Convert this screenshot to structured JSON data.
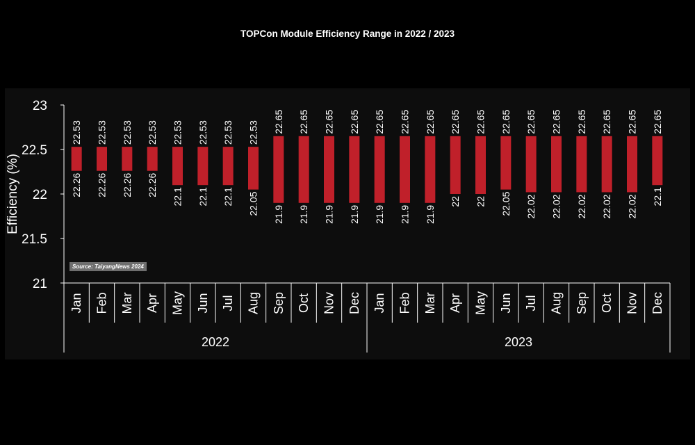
{
  "chart_data": {
    "type": "bar",
    "subtype": "floating-range",
    "title": "TOPCon Module Efficiency Range in 2022 / 2023",
    "ylabel": "Efficiency (%)",
    "xlabel": "",
    "ylim": [
      21,
      23
    ],
    "yticks": [
      "21",
      "21.5",
      "22",
      "22.5",
      "23"
    ],
    "grid": false,
    "legend": "none",
    "bar_color": "#c0202a",
    "groups": [
      {
        "label": "2022",
        "months": [
          "Jan",
          "Feb",
          "Mar",
          "Apr",
          "May",
          "Jun",
          "Jul",
          "Aug",
          "Sep",
          "Oct",
          "Nov",
          "Dec"
        ]
      },
      {
        "label": "2023",
        "months": [
          "Jan",
          "Feb",
          "Mar",
          "Apr",
          "May",
          "Jun",
          "Jul",
          "Aug",
          "Sep",
          "Oct",
          "Nov",
          "Dec"
        ]
      }
    ],
    "min_values": [
      22.26,
      22.26,
      22.26,
      22.26,
      22.1,
      22.1,
      22.1,
      22.05,
      21.9,
      21.9,
      21.9,
      21.9,
      21.9,
      21.9,
      21.9,
      22,
      22,
      22.05,
      22.02,
      22.02,
      22.02,
      22.02,
      22.02,
      22.1
    ],
    "max_values": [
      22.53,
      22.53,
      22.53,
      22.53,
      22.53,
      22.53,
      22.53,
      22.53,
      22.65,
      22.65,
      22.65,
      22.65,
      22.65,
      22.65,
      22.65,
      22.65,
      22.65,
      22.65,
      22.65,
      22.65,
      22.65,
      22.65,
      22.65,
      22.65
    ],
    "min_labels": [
      "22.26",
      "22.26",
      "22.26",
      "22.26",
      "22.1",
      "22.1",
      "22.1",
      "22.05",
      "21.9",
      "21.9",
      "21.9",
      "21.9",
      "21.9",
      "21.9",
      "21.9",
      "22",
      "22",
      "22.05",
      "22.02",
      "22.02",
      "22.02",
      "22.02",
      "22.02",
      "22.1"
    ],
    "max_labels": [
      "22.53",
      "22.53",
      "22.53",
      "22.53",
      "22.53",
      "22.53",
      "22.53",
      "22.53",
      "22.65",
      "22.65",
      "22.65",
      "22.65",
      "22.65",
      "22.65",
      "22.65",
      "22.65",
      "22.65",
      "22.65",
      "22.65",
      "22.65",
      "22.65",
      "22.65",
      "22.65",
      "22.65"
    ],
    "annotation": "Source: TaiyangNews 2024"
  }
}
